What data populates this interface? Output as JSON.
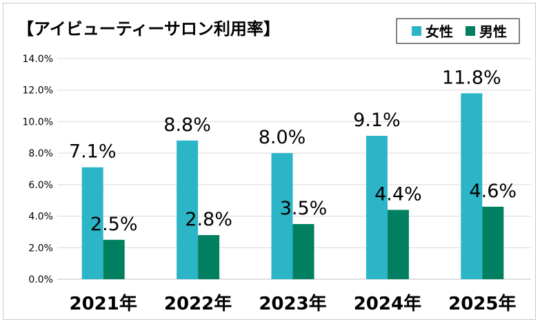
{
  "chart_data": {
    "type": "bar",
    "title": "【アイビューティーサロン利用率】",
    "categories": [
      "2021年",
      "2022年",
      "2023年",
      "2024年",
      "2025年"
    ],
    "series": [
      {
        "name": "女性",
        "color": "#2bb5c6",
        "values": [
          7.1,
          8.8,
          8.0,
          9.1,
          11.8
        ],
        "labels": [
          "7.1%",
          "8.8%",
          "8.0%",
          "9.1%",
          "11.8%"
        ]
      },
      {
        "name": "男性",
        "color": "#008060",
        "values": [
          2.5,
          2.8,
          3.5,
          4.4,
          4.6
        ],
        "labels": [
          "2.5%",
          "2.8%",
          "3.5%",
          "4.4%",
          "4.6%"
        ]
      }
    ],
    "yticks": [
      "0.0%",
      "2.0%",
      "4.0%",
      "6.0%",
      "8.0%",
      "10.0%",
      "12.0%",
      "14.0%"
    ],
    "ylim": [
      0,
      14
    ],
    "ytick_step": 2,
    "grid": true,
    "legend_position": "top-right"
  }
}
